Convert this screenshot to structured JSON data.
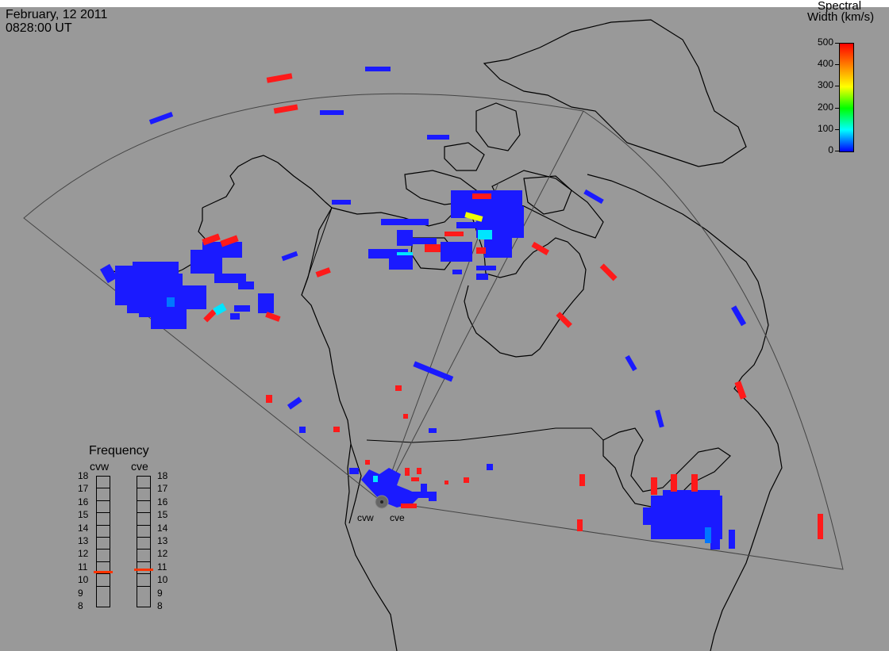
{
  "header": {
    "date": "February, 12 2011",
    "time": "0828:00 UT"
  },
  "colorbar": {
    "title_line1": "Spectral",
    "title_line2": "Width (km/s)",
    "ticks": [
      "500",
      "400",
      "300",
      "200",
      "100",
      "0"
    ],
    "colors": [
      "#0000ff",
      "#00ffff",
      "#00ff00",
      "#ffff00",
      "#ff8000",
      "#ff0000"
    ]
  },
  "frequency": {
    "title": "Frequency",
    "cvw_label": "cvw",
    "cve_label": "cve",
    "levels": [
      "18",
      "17",
      "16",
      "15",
      "14",
      "13",
      "12",
      "11",
      "10",
      "9",
      "8"
    ],
    "cvw_value_mhz": 10.6,
    "cve_value_mhz": 10.8
  },
  "radars": {
    "west": "cvw",
    "east": "cve"
  },
  "colors": {
    "background": "#999999",
    "low_width": "#1a1aff",
    "high_width": "#ff1a1a",
    "mid_width": "#00e5ff"
  }
}
